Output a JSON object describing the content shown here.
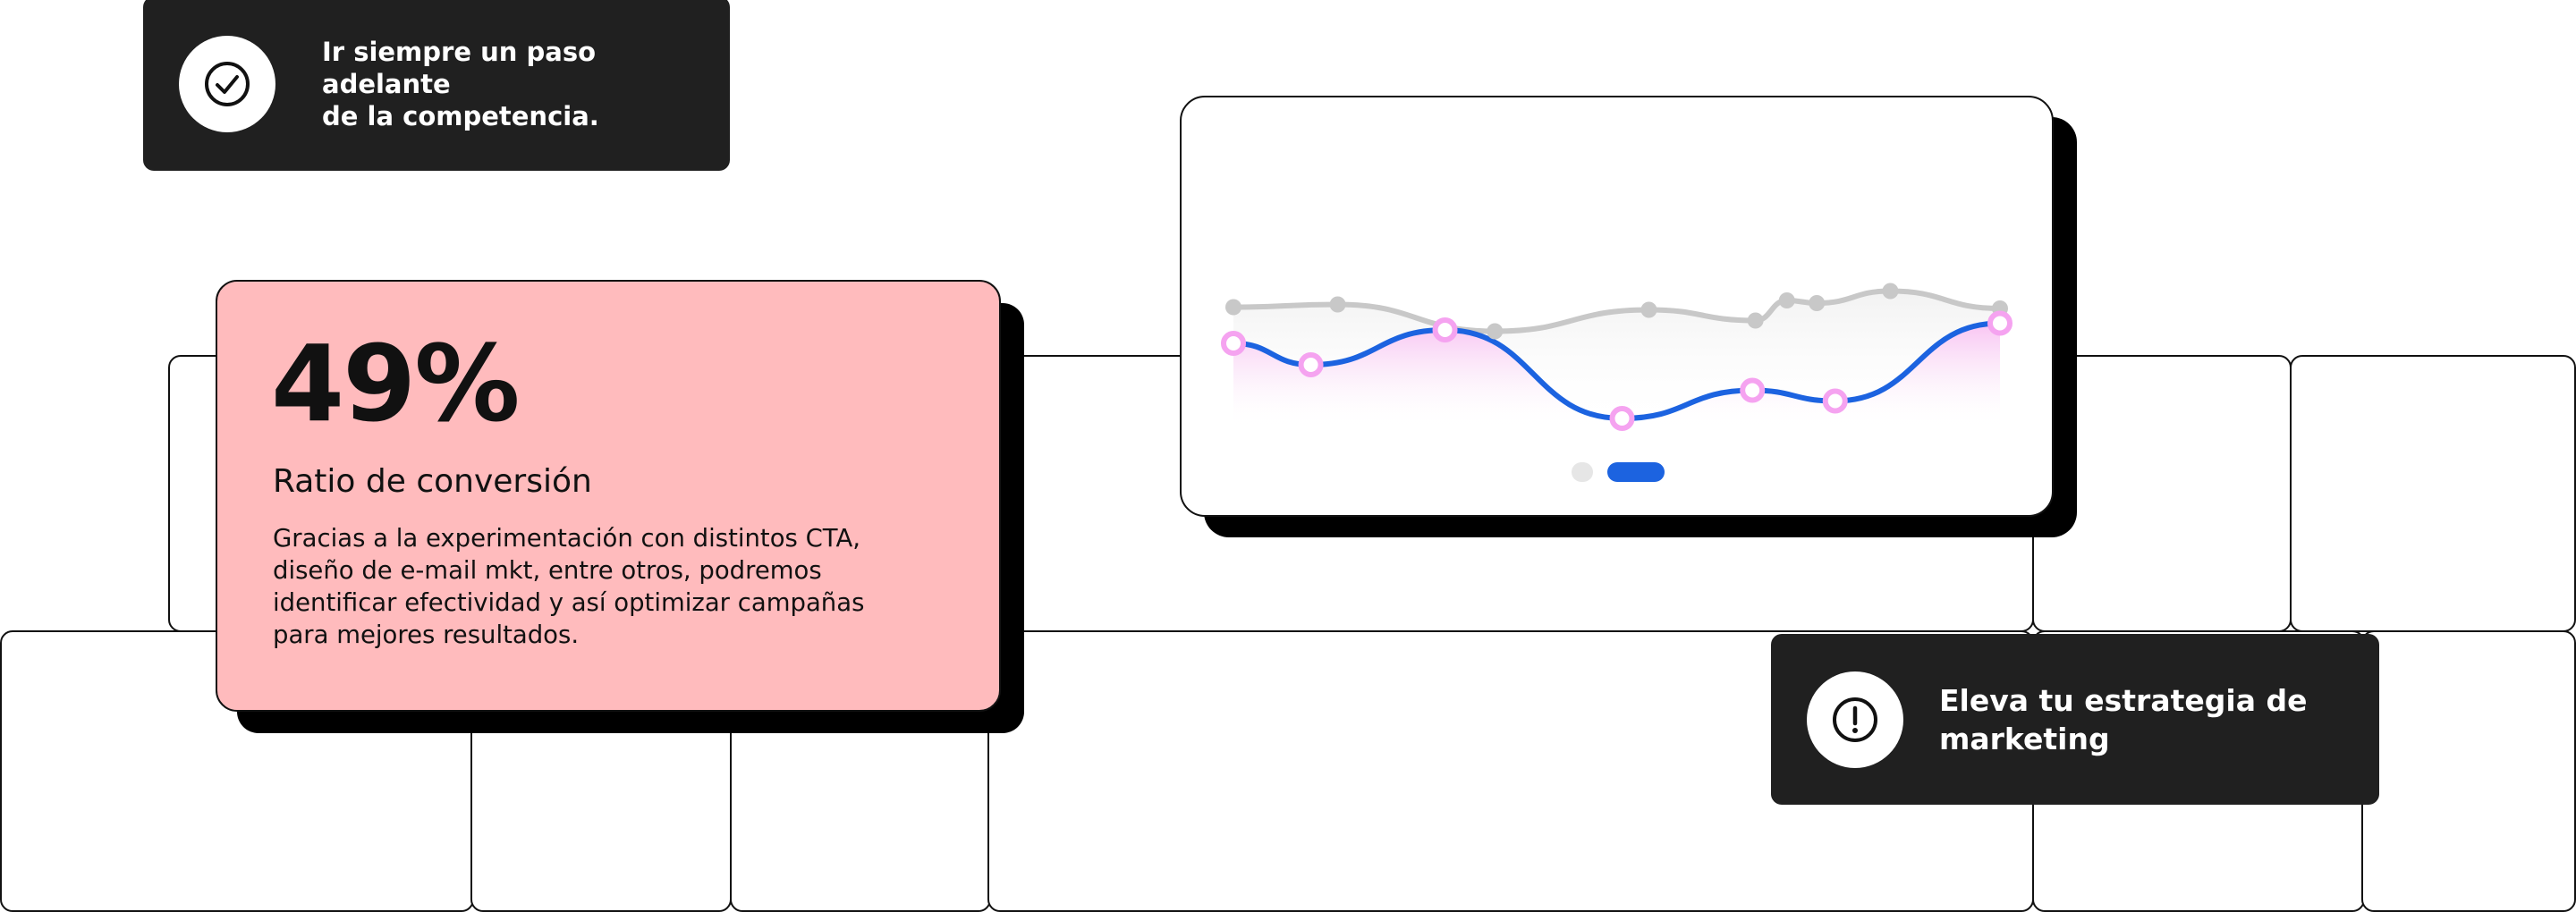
{
  "top_card": {
    "icon": "check-circle-icon",
    "line1": "Ir siempre un paso adelante",
    "line2": "de la competencia."
  },
  "stat_card": {
    "value": "49%",
    "title": "Ratio de conversión",
    "description_lines": [
      "Gracias a la experimentación con distintos CTA,",
      "diseño de e-mail mkt, entre otros, podremos",
      "identificar efectividad y así optimizar campañas",
      "para mejores resultados."
    ]
  },
  "bottom_card": {
    "icon": "exclamation-circle-icon",
    "line1": "Eleva tu estrategia de",
    "line2": "marketing"
  },
  "chart_data": {
    "type": "line",
    "series": [
      {
        "color": "#c8c8c8",
        "values": [
          0.35,
          0.37,
          0.17,
          0.33,
          0.25,
          0.4,
          0.38,
          0.47,
          0.34
        ]
      },
      {
        "color": "#1c63e0",
        "point_color": "#f5a3f0",
        "values": [
          0.9,
          0.74,
          1.0,
          0.34,
          0.55,
          0.47,
          1.05
        ]
      }
    ],
    "pager": {
      "active_index": 1,
      "count": 2
    }
  },
  "colors": {
    "pink_card": "#ffbbbd",
    "dark_card": "#202020",
    "accent_blue": "#1c63e0",
    "point_pink": "#f5a3f0"
  }
}
